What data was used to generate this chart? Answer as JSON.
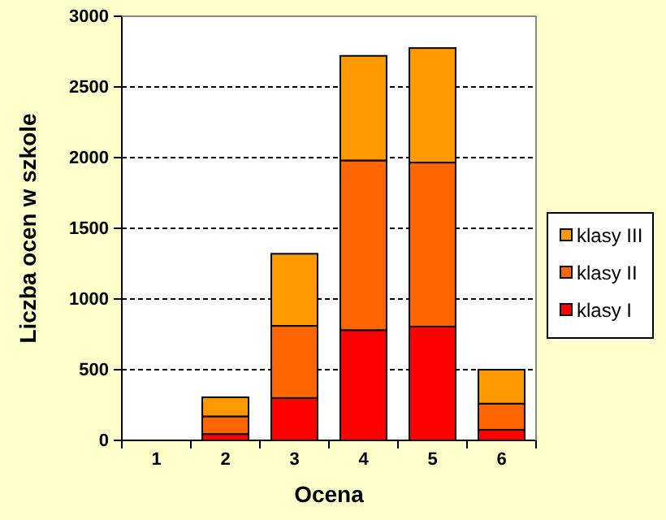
{
  "chart_data": {
    "type": "bar",
    "stacked": true,
    "xlabel": "Ocena",
    "ylabel": "Liczba ocen w szkole",
    "categories": [
      "1",
      "2",
      "3",
      "4",
      "5",
      "6"
    ],
    "series": [
      {
        "name": "klasy I",
        "color": "#ff0000",
        "values": [
          0,
          45,
          300,
          780,
          805,
          75
        ]
      },
      {
        "name": "klasy II",
        "color": "#ff6600",
        "values": [
          0,
          125,
          510,
          1200,
          1160,
          185
        ]
      },
      {
        "name": "klasy III",
        "color": "#ff9900",
        "values": [
          0,
          135,
          510,
          740,
          810,
          240
        ]
      }
    ],
    "ylim": [
      0,
      3000
    ],
    "yticks": [
      0,
      500,
      1000,
      1500,
      2000,
      2500,
      3000
    ],
    "grid": "y",
    "legend": "right"
  }
}
